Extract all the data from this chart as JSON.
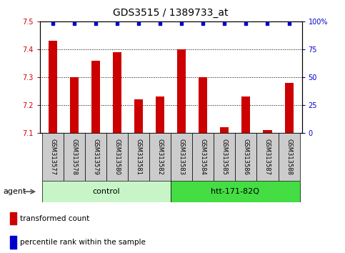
{
  "title": "GDS3515 / 1389733_at",
  "samples": [
    "GSM313577",
    "GSM313578",
    "GSM313579",
    "GSM313580",
    "GSM313581",
    "GSM313582",
    "GSM313583",
    "GSM313584",
    "GSM313585",
    "GSM313586",
    "GSM313587",
    "GSM313588"
  ],
  "bar_values": [
    7.43,
    7.3,
    7.36,
    7.39,
    7.22,
    7.23,
    7.4,
    7.3,
    7.12,
    7.23,
    7.11,
    7.28
  ],
  "percentile_values": [
    98,
    98,
    98,
    98,
    98,
    98,
    98,
    98,
    98,
    98,
    98,
    98
  ],
  "bar_bottom": 7.1,
  "ylim": [
    7.1,
    7.5
  ],
  "yticks": [
    7.1,
    7.2,
    7.3,
    7.4,
    7.5
  ],
  "right_yticks": [
    0,
    25,
    50,
    75,
    100
  ],
  "right_ylim": [
    0,
    100
  ],
  "bar_color": "#cc0000",
  "percentile_color": "#0000cc",
  "grid_color": "#000000",
  "background_color": "#ffffff",
  "tick_area_color": "#cccccc",
  "control_color": "#c8f5c8",
  "htt_color": "#44dd44",
  "control_label": "control",
  "htt_label": "htt-171-82Q",
  "agent_label": "agent",
  "legend_bar_label": "transformed count",
  "legend_pct_label": "percentile rank within the sample",
  "control_indices": [
    0,
    1,
    2,
    3,
    4,
    5
  ],
  "htt_indices": [
    6,
    7,
    8,
    9,
    10,
    11
  ],
  "left_ylabel_color": "#cc0000",
  "right_ylabel_color": "#0000cc",
  "title_fontsize": 10,
  "label_fontsize": 6,
  "group_fontsize": 8,
  "legend_fontsize": 7.5,
  "agent_fontsize": 8
}
